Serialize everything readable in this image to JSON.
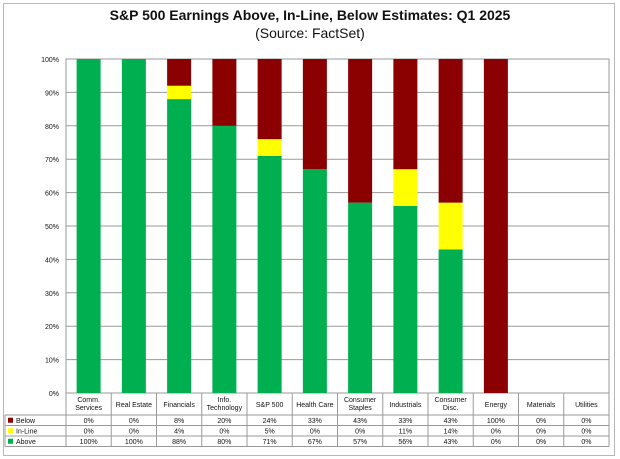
{
  "chart_data": {
    "type": "bar",
    "stacked": true,
    "percent_stacked": true,
    "title": "S&P 500 Earnings Above, In-Line, Below Estimates: Q1 2025",
    "subtitle": "(Source: FactSet)",
    "categories": [
      [
        "Comm.",
        "Services"
      ],
      [
        "Real Estate"
      ],
      [
        "Financials"
      ],
      [
        "Info.",
        "Technology"
      ],
      [
        "S&P 500"
      ],
      [
        "Health Care"
      ],
      [
        "Consumer",
        "Staples"
      ],
      [
        "Industrials"
      ],
      [
        "Consumer",
        "Disc."
      ],
      [
        "Energy"
      ],
      [
        "Materials"
      ],
      [
        "Utilities"
      ]
    ],
    "y_ticks": [
      "0%",
      "10%",
      "20%",
      "30%",
      "40%",
      "50%",
      "60%",
      "70%",
      "80%",
      "90%",
      "100%"
    ],
    "ylim": [
      0,
      100
    ],
    "grid": true,
    "legend_placement": "data-table-left",
    "series": [
      {
        "name": "Below",
        "color": "#8b0000",
        "values": [
          0,
          0,
          8,
          20,
          24,
          33,
          43,
          33,
          43,
          100,
          0,
          0
        ],
        "labels": [
          "0%",
          "0%",
          "8%",
          "20%",
          "24%",
          "33%",
          "43%",
          "33%",
          "43%",
          "100%",
          "0%",
          "0%"
        ]
      },
      {
        "name": "In-Line",
        "color": "#ffff00",
        "values": [
          0,
          0,
          4,
          0,
          5,
          0,
          0,
          11,
          14,
          0,
          0,
          0
        ],
        "labels": [
          "0%",
          "0%",
          "4%",
          "0%",
          "5%",
          "0%",
          "0%",
          "11%",
          "14%",
          "0%",
          "0%",
          "0%"
        ]
      },
      {
        "name": "Above",
        "color": "#00b050",
        "values": [
          100,
          100,
          88,
          80,
          71,
          67,
          57,
          56,
          43,
          0,
          0,
          0
        ],
        "labels": [
          "100%",
          "100%",
          "88%",
          "80%",
          "71%",
          "67%",
          "57%",
          "56%",
          "43%",
          "0%",
          "0%",
          "0%"
        ]
      }
    ]
  }
}
